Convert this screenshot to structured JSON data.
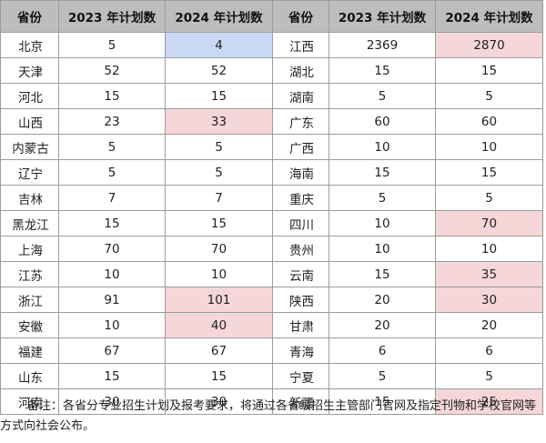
{
  "table": {
    "headers": [
      "省份",
      "2023 年计划数",
      "2024 年计划数",
      "省份",
      "2023 年计划数",
      "2024 年计划数"
    ],
    "rows": [
      {
        "left": {
          "province": "北京",
          "y2023": "5",
          "y2024": "4",
          "hl": "blue"
        },
        "right": {
          "province": "江西",
          "y2023": "2369",
          "y2024": "2870",
          "hl": "pink"
        }
      },
      {
        "left": {
          "province": "天津",
          "y2023": "52",
          "y2024": "52",
          "hl": ""
        },
        "right": {
          "province": "湖北",
          "y2023": "15",
          "y2024": "15",
          "hl": ""
        }
      },
      {
        "left": {
          "province": "河北",
          "y2023": "15",
          "y2024": "15",
          "hl": ""
        },
        "right": {
          "province": "湖南",
          "y2023": "5",
          "y2024": "5",
          "hl": ""
        }
      },
      {
        "left": {
          "province": "山西",
          "y2023": "23",
          "y2024": "33",
          "hl": "pink"
        },
        "right": {
          "province": "广东",
          "y2023": "60",
          "y2024": "60",
          "hl": ""
        }
      },
      {
        "left": {
          "province": "内蒙古",
          "y2023": "5",
          "y2024": "5",
          "hl": ""
        },
        "right": {
          "province": "广西",
          "y2023": "10",
          "y2024": "10",
          "hl": ""
        }
      },
      {
        "left": {
          "province": "辽宁",
          "y2023": "5",
          "y2024": "5",
          "hl": ""
        },
        "right": {
          "province": "海南",
          "y2023": "15",
          "y2024": "15",
          "hl": ""
        }
      },
      {
        "left": {
          "province": "吉林",
          "y2023": "7",
          "y2024": "7",
          "hl": ""
        },
        "right": {
          "province": "重庆",
          "y2023": "5",
          "y2024": "5",
          "hl": ""
        }
      },
      {
        "left": {
          "province": "黑龙江",
          "y2023": "15",
          "y2024": "15",
          "hl": ""
        },
        "right": {
          "province": "四川",
          "y2023": "10",
          "y2024": "70",
          "hl": "pink"
        }
      },
      {
        "left": {
          "province": "上海",
          "y2023": "70",
          "y2024": "70",
          "hl": ""
        },
        "right": {
          "province": "贵州",
          "y2023": "10",
          "y2024": "10",
          "hl": ""
        }
      },
      {
        "left": {
          "province": "江苏",
          "y2023": "10",
          "y2024": "10",
          "hl": ""
        },
        "right": {
          "province": "云南",
          "y2023": "15",
          "y2024": "35",
          "hl": "pink"
        }
      },
      {
        "left": {
          "province": "浙江",
          "y2023": "91",
          "y2024": "101",
          "hl": "pink"
        },
        "right": {
          "province": "陕西",
          "y2023": "20",
          "y2024": "30",
          "hl": "pink"
        }
      },
      {
        "left": {
          "province": "安徽",
          "y2023": "10",
          "y2024": "40",
          "hl": "pink"
        },
        "right": {
          "province": "甘肃",
          "y2023": "20",
          "y2024": "20",
          "hl": ""
        }
      },
      {
        "left": {
          "province": "福建",
          "y2023": "67",
          "y2024": "67",
          "hl": ""
        },
        "right": {
          "province": "青海",
          "y2023": "6",
          "y2024": "6",
          "hl": ""
        }
      },
      {
        "left": {
          "province": "山东",
          "y2023": "15",
          "y2024": "15",
          "hl": ""
        },
        "right": {
          "province": "宁夏",
          "y2023": "5",
          "y2024": "5",
          "hl": ""
        }
      },
      {
        "left": {
          "province": "河南",
          "y2023": "30",
          "y2024": "30",
          "hl": ""
        },
        "right": {
          "province": "新疆",
          "y2023": "15",
          "y2024": "25",
          "hl": "pink"
        }
      }
    ]
  },
  "note": "备注：各省分专业招生计划及报考要求，将通过各省级招生主管部门官网及指定刊物和学校官网等方式向社会公布。",
  "colors": {
    "header_bg": "#bdbdbd",
    "highlight_blue": "#c9d9f3",
    "highlight_pink": "#f5d6d9",
    "border": "#9c9c9c"
  }
}
